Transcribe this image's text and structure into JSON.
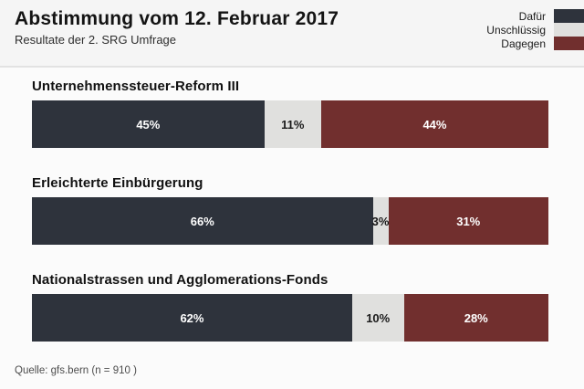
{
  "header": {
    "title": "Abstimmung vom 12. Februar 2017",
    "subtitle": "Resultate der 2. SRG Umfrage"
  },
  "legend": [
    {
      "label": "Dafür",
      "color": "#2e333c"
    },
    {
      "label": "Unschlüssig",
      "color": "#e0e0de"
    },
    {
      "label": "Dagegen",
      "color": "#712f2e"
    }
  ],
  "chart_data": {
    "type": "bar",
    "orientation": "horizontal_stacked",
    "title": "Abstimmung vom 12. Februar 2017",
    "subtitle": "Resultate der 2. SRG Umfrage",
    "unit": "%",
    "value_labels": true,
    "legend_position": "top-right",
    "categories": [
      "Unternehmenssteuer-Reform III",
      "Erleichterte Einbürgerung",
      "Nationalstrassen und Agglomerations-Fonds"
    ],
    "series": [
      {
        "name": "Dafür",
        "color": "#2e333c",
        "values": [
          45,
          66,
          62
        ]
      },
      {
        "name": "Unschlüssig",
        "color": "#e0e0de",
        "values": [
          11,
          3,
          10
        ]
      },
      {
        "name": "Dagegen",
        "color": "#712f2e",
        "values": [
          44,
          31,
          28
        ]
      }
    ],
    "xlim": [
      0,
      100
    ]
  },
  "footer": {
    "source": "Quelle: gfs.bern (n = 910 )"
  }
}
